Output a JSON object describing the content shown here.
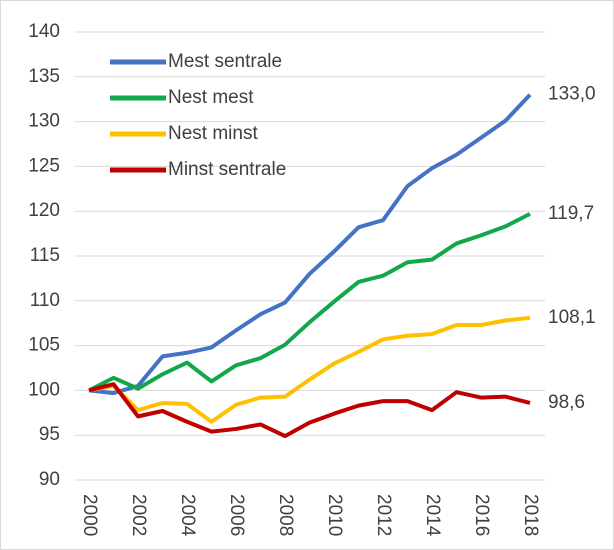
{
  "chart_data": {
    "type": "line",
    "x": [
      2000,
      2001,
      2002,
      2003,
      2004,
      2005,
      2006,
      2007,
      2008,
      2009,
      2010,
      2011,
      2012,
      2013,
      2014,
      2015,
      2016,
      2017,
      2018
    ],
    "xlim": [
      2000,
      2018
    ],
    "xticks": [
      2000,
      2002,
      2004,
      2006,
      2008,
      2010,
      2012,
      2014,
      2016,
      2018
    ],
    "ylim": [
      90,
      140
    ],
    "yticks": [
      90,
      95,
      100,
      105,
      110,
      115,
      120,
      125,
      130,
      135,
      140
    ],
    "grid": true,
    "legend": "top-left",
    "series": [
      {
        "name": "Mest sentrale",
        "color": "#4472c4",
        "values": [
          100,
          99.7,
          100.5,
          103.8,
          104.2,
          104.8,
          106.7,
          108.5,
          109.8,
          113,
          115.5,
          118.2,
          119,
          122.8,
          124.8,
          126.3,
          128.2,
          130.1,
          133.0
        ],
        "value_labels": [
          null,
          null,
          null,
          null,
          null,
          null,
          null,
          null,
          null,
          null,
          null,
          null,
          null,
          null,
          null,
          null,
          null,
          null,
          "133,0"
        ]
      },
      {
        "name": "Nest mest",
        "color": "#12a84a",
        "values": [
          100,
          101.4,
          100.2,
          101.8,
          103.1,
          101.0,
          102.8,
          103.6,
          105.1,
          107.6,
          109.9,
          112.1,
          112.8,
          114.3,
          114.6,
          116.4,
          117.3,
          118.3,
          119.7
        ],
        "value_labels": [
          null,
          null,
          null,
          null,
          null,
          null,
          null,
          null,
          null,
          null,
          null,
          null,
          null,
          null,
          null,
          null,
          null,
          null,
          "119,7"
        ]
      },
      {
        "name": "Nest minst",
        "color": "#ffc000",
        "values": [
          100,
          100.5,
          97.8,
          98.6,
          98.5,
          96.5,
          98.4,
          99.2,
          99.3,
          101.2,
          103,
          104.3,
          105.7,
          106.1,
          106.3,
          107.3,
          107.3,
          107.8,
          108.1
        ],
        "value_labels": [
          null,
          null,
          null,
          null,
          null,
          null,
          null,
          null,
          null,
          null,
          null,
          null,
          null,
          null,
          null,
          null,
          null,
          null,
          "108,1"
        ]
      },
      {
        "name": "Minst sentrale",
        "color": "#c00000",
        "values": [
          100,
          100.7,
          97.1,
          97.7,
          96.5,
          95.4,
          95.7,
          96.2,
          94.9,
          96.4,
          97.4,
          98.3,
          98.8,
          98.8,
          97.8,
          99.8,
          99.2,
          99.3,
          98.6
        ],
        "value_labels": [
          null,
          null,
          null,
          null,
          null,
          null,
          null,
          null,
          null,
          null,
          null,
          null,
          null,
          null,
          null,
          null,
          null,
          null,
          "98,6"
        ]
      }
    ]
  }
}
